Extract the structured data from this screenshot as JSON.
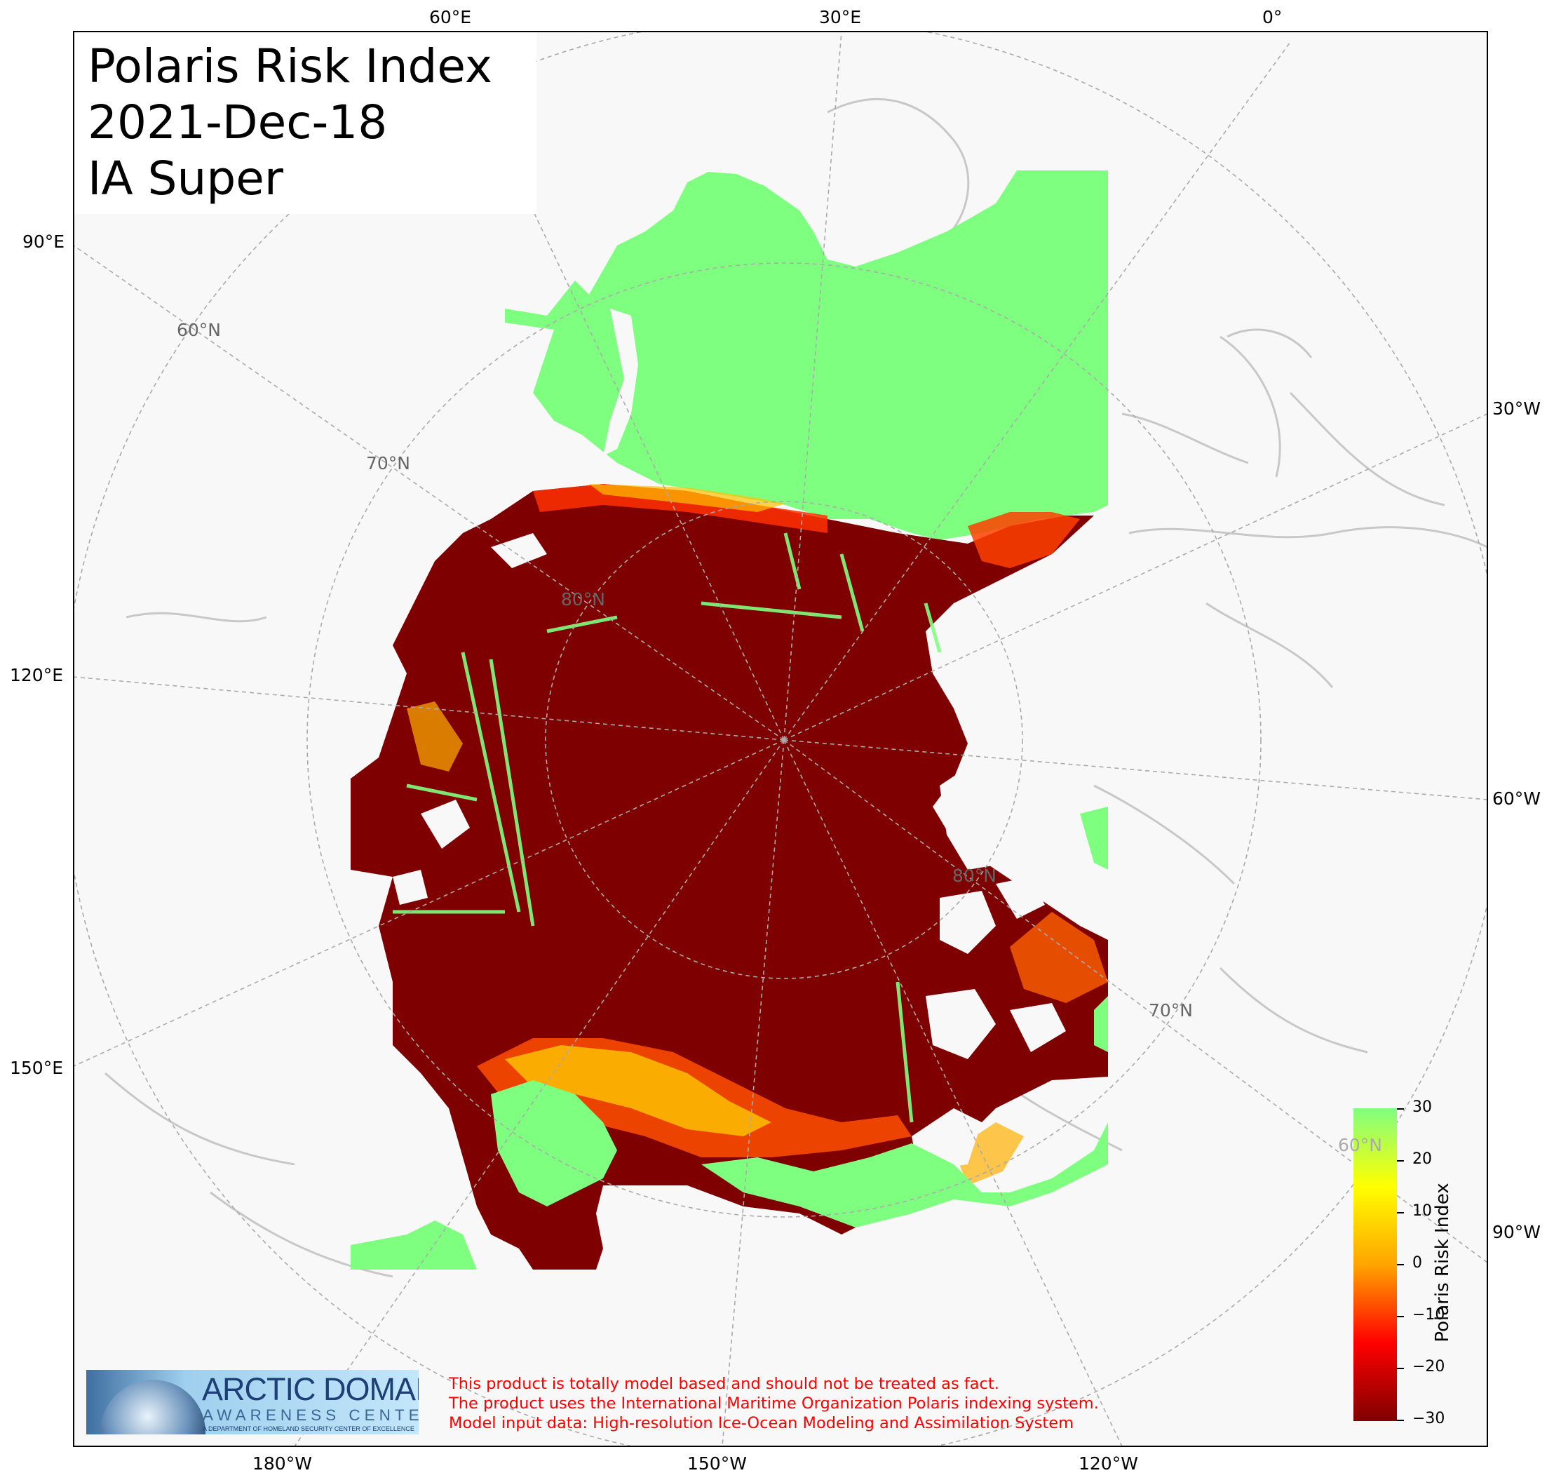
{
  "title": {
    "line1": "Polaris Risk Index",
    "line2": "2021-Dec-18",
    "line3": "IA Super"
  },
  "longitude_labels": {
    "top": [
      "60°E",
      "30°E",
      "0°"
    ],
    "left": [
      "90°E",
      "120°E",
      "150°E"
    ],
    "right": [
      "30°W",
      "60°W",
      "90°W"
    ],
    "bottom": [
      "180°W",
      "150°W",
      "120°W"
    ]
  },
  "latitude_labels": {
    "upper_left": [
      "60°N",
      "70°N",
      "80°N"
    ],
    "lower_right": [
      "80°N",
      "70°N",
      "60°N"
    ]
  },
  "colorbar": {
    "label": "Polaris Risk Index",
    "min": -30,
    "max": 30,
    "ticks": [
      "30",
      "20",
      "10",
      "0",
      "−10",
      "−20",
      "−30"
    ],
    "colors": [
      "#800000",
      "#ff0000",
      "#ffa500",
      "#ffff00",
      "#80ff80"
    ]
  },
  "disclaimer": {
    "line1": "This product is totally model based and should not be treated as fact.",
    "line2": "The product uses the International Maritime Organization Polaris indexing system.",
    "line3": "Model input data: High-resolution Ice-Ocean Modeling and Assimilation System"
  },
  "logo": {
    "main": "ARCTIC DOMAIN",
    "sub": "AWARENESS CENTER",
    "tagline": "A DEPARTMENT OF HOMELAND SECURITY CENTER OF EXCELLENCE"
  },
  "map": {
    "projection": "north-polar-stereographic",
    "land_color": "#f8f8f8",
    "coastline_color": "#c8c8c8",
    "graticule_color": "#aaaaaa"
  }
}
